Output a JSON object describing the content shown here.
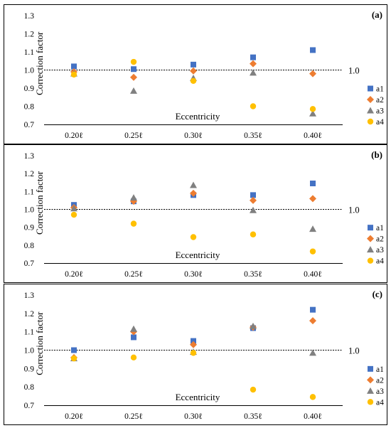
{
  "chart_data": [
    {
      "type": "scatter",
      "panel_label": "(a)",
      "categories": [
        "0.20ℓ",
        "0.25ℓ",
        "0.30ℓ",
        "0.35ℓ",
        "0.40ℓ"
      ],
      "xlabel": "Eccentricity",
      "ylabel": "Correction factor",
      "ylim": [
        0.7,
        1.3
      ],
      "yticks": [
        "0.7",
        "0.8",
        "0.9",
        "1.0",
        "1.1",
        "1.2",
        "1.3"
      ],
      "reference_line": {
        "value": 1.0,
        "label": "1.0"
      },
      "legend_position": "right",
      "series": [
        {
          "name": "a1",
          "marker": "square",
          "color": "#4472C4",
          "values": [
            1.02,
            1.005,
            1.03,
            1.07,
            1.11
          ]
        },
        {
          "name": "a2",
          "marker": "diamond",
          "color": "#ED7D31",
          "values": [
            0.99,
            0.96,
            0.995,
            1.035,
            0.98
          ]
        },
        {
          "name": "a3",
          "marker": "triangle",
          "color": "#808080",
          "values": [
            0.98,
            0.885,
            0.955,
            0.985,
            0.76
          ]
        },
        {
          "name": "a4",
          "marker": "circle",
          "color": "#FFC000",
          "values": [
            0.975,
            1.045,
            0.94,
            0.8,
            0.785
          ]
        }
      ]
    },
    {
      "type": "scatter",
      "panel_label": "(b)",
      "categories": [
        "0.20ℓ",
        "0.25ℓ",
        "0.30ℓ",
        "0.35ℓ",
        "0.40ℓ"
      ],
      "xlabel": "Eccentricity",
      "ylabel": "Correction factor",
      "ylim": [
        0.7,
        1.3
      ],
      "yticks": [
        "0.7",
        "0.8",
        "0.9",
        "1.0",
        "1.1",
        "1.2",
        "1.3"
      ],
      "reference_line": {
        "value": 1.0,
        "label": "1.0"
      },
      "legend_position": "right",
      "series": [
        {
          "name": "a1",
          "marker": "square",
          "color": "#4472C4",
          "values": [
            1.025,
            1.045,
            1.08,
            1.08,
            1.145
          ]
        },
        {
          "name": "a2",
          "marker": "diamond",
          "color": "#ED7D31",
          "values": [
            1.01,
            1.045,
            1.09,
            1.05,
            1.06
          ]
        },
        {
          "name": "a3",
          "marker": "triangle",
          "color": "#808080",
          "values": [
            1.005,
            1.065,
            1.135,
            0.995,
            0.89
          ]
        },
        {
          "name": "a4",
          "marker": "circle",
          "color": "#FFC000",
          "values": [
            0.97,
            0.92,
            0.845,
            0.86,
            0.765
          ]
        }
      ]
    },
    {
      "type": "scatter",
      "panel_label": "(c)",
      "categories": [
        "0.20ℓ",
        "0.25ℓ",
        "0.30ℓ",
        "0.35ℓ",
        "0.40ℓ"
      ],
      "xlabel": "Eccentricity",
      "ylabel": "Correction factor",
      "ylim": [
        0.7,
        1.3
      ],
      "yticks": [
        "0.7",
        "0.8",
        "0.9",
        "1.0",
        "1.1",
        "1.2",
        "1.3"
      ],
      "reference_line": {
        "value": 1.0,
        "label": "1.0"
      },
      "legend_position": "right",
      "series": [
        {
          "name": "a1",
          "marker": "square",
          "color": "#4472C4",
          "values": [
            1.0,
            1.07,
            1.05,
            1.12,
            1.22
          ]
        },
        {
          "name": "a2",
          "marker": "diamond",
          "color": "#ED7D31",
          "values": [
            0.96,
            1.1,
            1.03,
            1.125,
            1.16
          ]
        },
        {
          "name": "a3",
          "marker": "triangle",
          "color": "#808080",
          "values": [
            0.955,
            1.115,
            0.99,
            1.13,
            0.985
          ]
        },
        {
          "name": "a4",
          "marker": "circle",
          "color": "#FFC000",
          "values": [
            0.955,
            0.96,
            0.985,
            0.785,
            0.745
          ]
        }
      ]
    }
  ]
}
